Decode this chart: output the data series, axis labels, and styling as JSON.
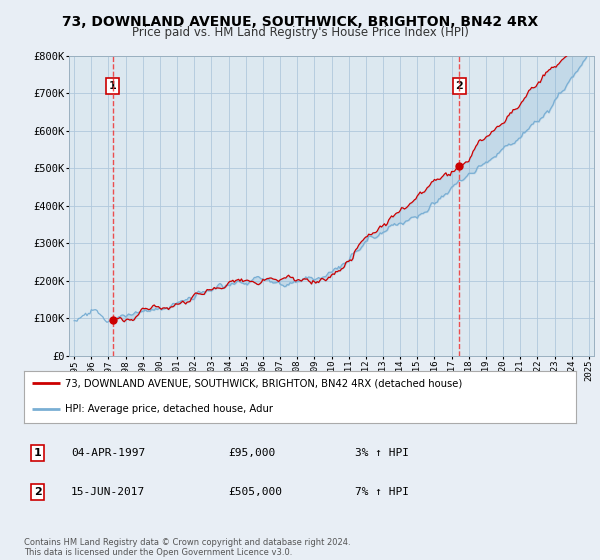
{
  "title": "73, DOWNLAND AVENUE, SOUTHWICK, BRIGHTON, BN42 4RX",
  "subtitle": "Price paid vs. HM Land Registry's House Price Index (HPI)",
  "background_color": "#e8eef5",
  "plot_bg_color": "#dce8f0",
  "ylim": [
    0,
    800000
  ],
  "yticks": [
    0,
    100000,
    200000,
    300000,
    400000,
    500000,
    600000,
    700000,
    800000
  ],
  "ytick_labels": [
    "£0",
    "£100K",
    "£200K",
    "£300K",
    "£400K",
    "£500K",
    "£600K",
    "£700K",
    "£800K"
  ],
  "t1_year": 1997.25,
  "t1_price": 95000,
  "t2_year": 2017.45,
  "t2_price": 505000,
  "legend_line1": "73, DOWNLAND AVENUE, SOUTHWICK, BRIGHTON, BN42 4RX (detached house)",
  "legend_line2": "HPI: Average price, detached house, Adur",
  "footer": "Contains HM Land Registry data © Crown copyright and database right 2024.\nThis data is licensed under the Open Government Licence v3.0.",
  "note1_label": "1",
  "note1_date": "04-APR-1997",
  "note1_price": "£95,000",
  "note1_hpi": "3% ↑ HPI",
  "note2_label": "2",
  "note2_date": "15-JUN-2017",
  "note2_price": "£505,000",
  "note2_hpi": "7% ↑ HPI",
  "line_color_red": "#cc0000",
  "line_color_blue": "#7aafd4",
  "dashed_color": "#ee3333",
  "grid_color": "#b0c8dc",
  "spine_color": "#9ab0c0"
}
